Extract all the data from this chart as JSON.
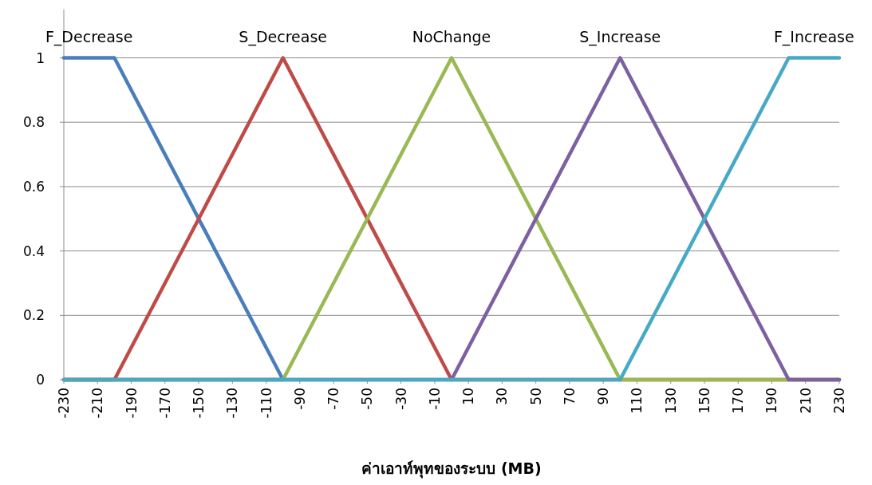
{
  "chart_data": {
    "type": "line",
    "xlabel": "ค่าเอาท์พุทของระบบ (MB)",
    "xlim": [
      -230,
      230
    ],
    "ylim": [
      0,
      1.15
    ],
    "xticks": [
      -230,
      -210,
      -190,
      -170,
      -150,
      -130,
      -110,
      -90,
      -70,
      -50,
      -30,
      -10,
      10,
      30,
      50,
      70,
      90,
      110,
      130,
      150,
      170,
      190,
      210,
      230
    ],
    "yticks": [
      0,
      0.2,
      0.4,
      0.6,
      0.8,
      1
    ],
    "grid": "y",
    "series": [
      {
        "name": "F_Decrease",
        "color": "#4a7ebb",
        "x": [
          -230,
          -200,
          -100
        ],
        "values": [
          1,
          1,
          0
        ]
      },
      {
        "name": "S_Decrease",
        "color": "#be4b48",
        "x": [
          -230,
          -200,
          -100,
          0,
          230
        ],
        "values": [
          0,
          0,
          1,
          0,
          0
        ]
      },
      {
        "name": "NoChange",
        "color": "#98b954",
        "x": [
          -230,
          -100,
          0,
          100,
          230
        ],
        "values": [
          0,
          0,
          1,
          0,
          0
        ]
      },
      {
        "name": "S_Increase",
        "color": "#7d60a0",
        "x": [
          -230,
          0,
          100,
          200,
          230
        ],
        "values": [
          0,
          0,
          1,
          0,
          0
        ]
      },
      {
        "name": "F_Increase",
        "color": "#46aac5",
        "x": [
          -230,
          100,
          200,
          230
        ],
        "values": [
          0,
          0,
          1,
          1
        ]
      }
    ]
  }
}
